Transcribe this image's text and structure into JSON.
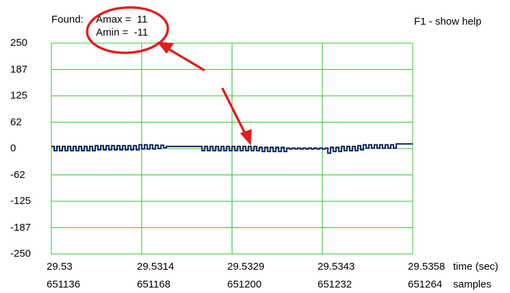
{
  "header": {
    "found_label": "Found:",
    "amax_label": "Amax =  11",
    "amin_label": "Amin =  -11",
    "help_text": "F1 - show help"
  },
  "colors": {
    "grid": "#2fc22f",
    "signal": "#0b1d5e",
    "annotation": "#e21d1d",
    "background": "#ffffff"
  },
  "chart_data": {
    "type": "line",
    "title": "",
    "ylabel": "",
    "ylim": [
      -250,
      250
    ],
    "yticks": [
      "250",
      "187",
      "125",
      "62",
      "0",
      "-62",
      "-125",
      "-187",
      "-250"
    ],
    "xlim": [
      29.53,
      29.5358
    ],
    "x_time_ticks": [
      "29.53",
      "29.5314",
      "29.5329",
      "29.5343",
      "29.5358"
    ],
    "x_sample_ticks": [
      "651136",
      "651168",
      "651200",
      "651232",
      "651264"
    ],
    "xlabel_time": "time (sec)",
    "xlabel_samples": "samples",
    "grid": true,
    "series": [
      {
        "sample_start": 651136,
        "sample_end": 651264,
        "values": [
          5,
          -5,
          5,
          -5,
          5,
          -5,
          5,
          -5,
          5,
          -5,
          5,
          -5,
          5,
          -5,
          5,
          -5,
          7,
          -3,
          7,
          -3,
          7,
          -3,
          7,
          -3,
          7,
          -3,
          7,
          -3,
          7,
          -3,
          7,
          -3,
          9,
          -1,
          9,
          -1,
          9,
          -1,
          8,
          0,
          8,
          2,
          5,
          5,
          5,
          5,
          5,
          5,
          5,
          5,
          5,
          5,
          5,
          5,
          5,
          -5,
          5,
          -5,
          5,
          -5,
          5,
          -5,
          5,
          -5,
          5,
          -5,
          5,
          -5,
          5,
          -5,
          5,
          -5,
          5,
          -5,
          5,
          -5,
          3,
          -7,
          3,
          -7,
          3,
          -7,
          3,
          -7,
          3,
          -7,
          1,
          -1,
          1,
          -1,
          1,
          -1,
          1,
          -1,
          1,
          -1,
          1,
          -1,
          1,
          -1,
          1,
          -11,
          3,
          -7,
          3,
          -7,
          5,
          -5,
          5,
          -5,
          5,
          -5,
          7,
          -3,
          9,
          1,
          9,
          1,
          9,
          1,
          9,
          1,
          9,
          1,
          9,
          1,
          11,
          11,
          11,
          11,
          11,
          11
        ]
      }
    ]
  }
}
